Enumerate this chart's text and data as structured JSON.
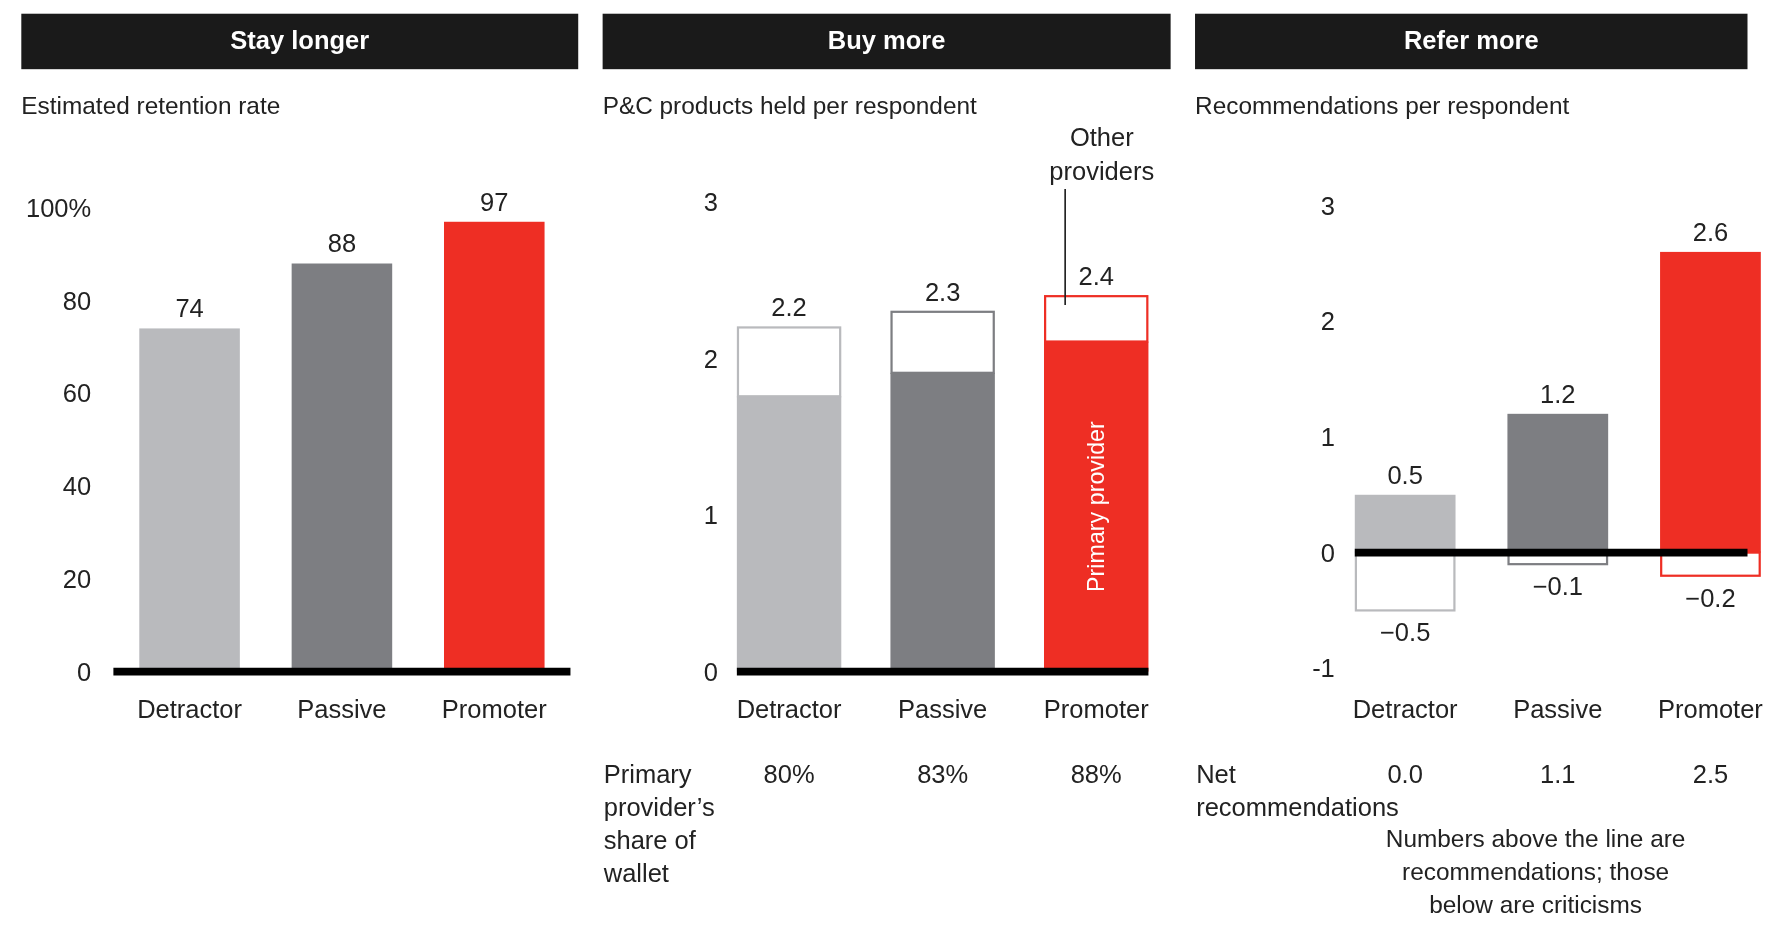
{
  "chart_data": [
    {
      "type": "bar",
      "title": "Stay longer",
      "subtitle": "Estimated retention rate",
      "categories": [
        "Detractor",
        "Passive",
        "Promoter"
      ],
      "values": [
        74,
        88,
        97
      ],
      "colors": [
        "#b9babd",
        "#7d7e82",
        "#ee2e24"
      ],
      "ylim": [
        0,
        100
      ],
      "yticks": [
        0,
        20,
        40,
        60,
        80,
        {
          "value": 100,
          "label": "100%"
        }
      ],
      "data_labels": true,
      "grid": false,
      "legend": false
    },
    {
      "type": "bar",
      "title": "Buy more",
      "subtitle": "P&C products held per respondent",
      "categories": [
        "Detractor",
        "Passive",
        "Promoter"
      ],
      "stacked": true,
      "series": [
        {
          "name": "Primary provider",
          "colors": [
            "#b9babd",
            "#7d7e82",
            "#ee2e24"
          ],
          "values": [
            1.76,
            1.91,
            2.11
          ]
        },
        {
          "name": "Other providers",
          "color": "#ffffff",
          "values": [
            0.44,
            0.39,
            0.29
          ]
        }
      ],
      "totals": [
        "2.2",
        "2.3",
        "2.4"
      ],
      "ylim": [
        0,
        3
      ],
      "yticks": [
        0,
        1,
        2,
        3
      ],
      "grid": false,
      "legend": false,
      "annotations": [
        "Primary provider’s share of wallet",
        "80%",
        "83%",
        "88%"
      ]
    },
    {
      "type": "bar",
      "title": "Refer more",
      "subtitle": "Recommendations per respondent",
      "categories": [
        "Detractor",
        "Passive",
        "Promoter"
      ],
      "stacked": true,
      "series": [
        {
          "colors": [
            "#b9babd",
            "#7d7e82",
            "#ee2e24"
          ],
          "values": [
            0.5,
            1.2,
            2.6
          ],
          "value_labels": [
            "0.5",
            "1.2",
            "2.6"
          ]
        },
        {
          "color": "#ffffff",
          "values": [
            -0.5,
            -0.1,
            -0.2
          ],
          "value_labels": [
            "−0.5",
            "−0.1",
            "−0.2"
          ]
        }
      ],
      "ylim": [
        -1,
        3
      ],
      "ref_lines": [
        {
          "axis": "y",
          "value": 0,
          "color": "#000000"
        }
      ],
      "yticks": [
        {
          "value": -1,
          "label": "-1"
        },
        0,
        1,
        2,
        3
      ],
      "grid": false,
      "legend": false,
      "annotations": [
        "Net recommendations",
        "0.0",
        "1.1",
        "2.5",
        "Numbers above the line are recommendations; those below are criticisms"
      ]
    }
  ]
}
